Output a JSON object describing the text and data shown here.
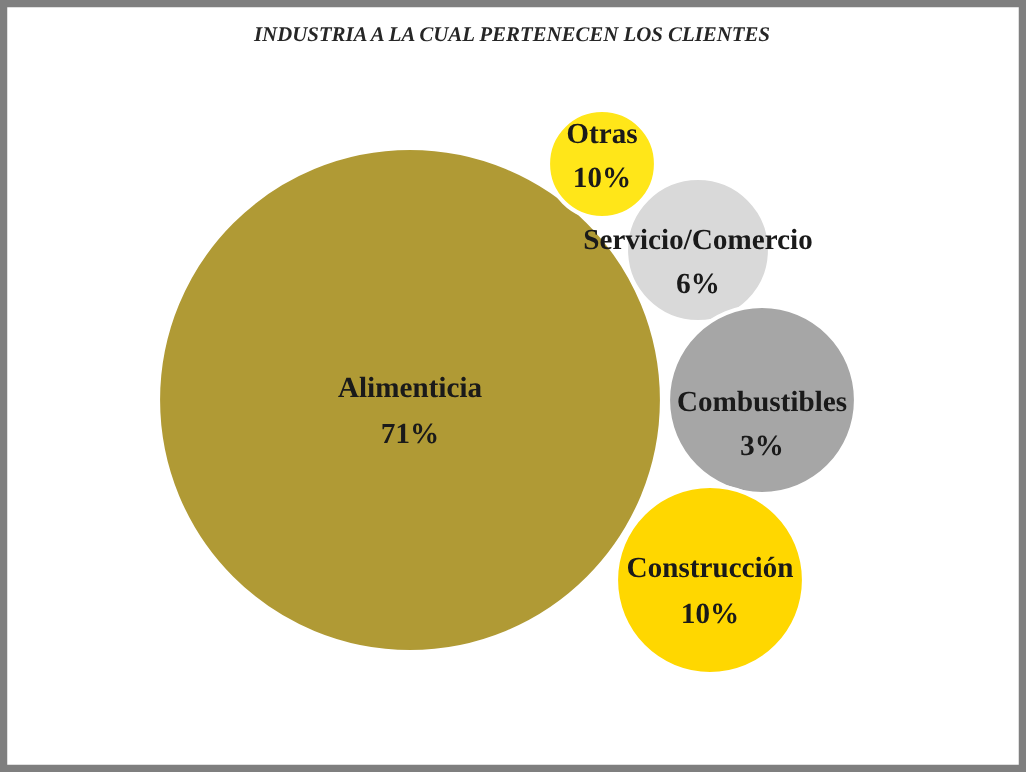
{
  "chart_data": {
    "type": "other",
    "title": "INDUSTRIA A LA CUAL PERTENECEN LOS CLIENTES",
    "categories": [
      "Alimenticia",
      "Otras",
      "Servicio/Comercio",
      "Combustibles",
      "Construcción"
    ],
    "values": [
      71,
      10,
      6,
      3,
      10
    ],
    "value_labels": [
      "71%",
      "10%",
      "6%",
      "3%",
      "10%"
    ],
    "colors": [
      "#b09a35",
      "#ffe619",
      "#d9d9d9",
      "#a6a6a6",
      "#ffd700"
    ]
  }
}
